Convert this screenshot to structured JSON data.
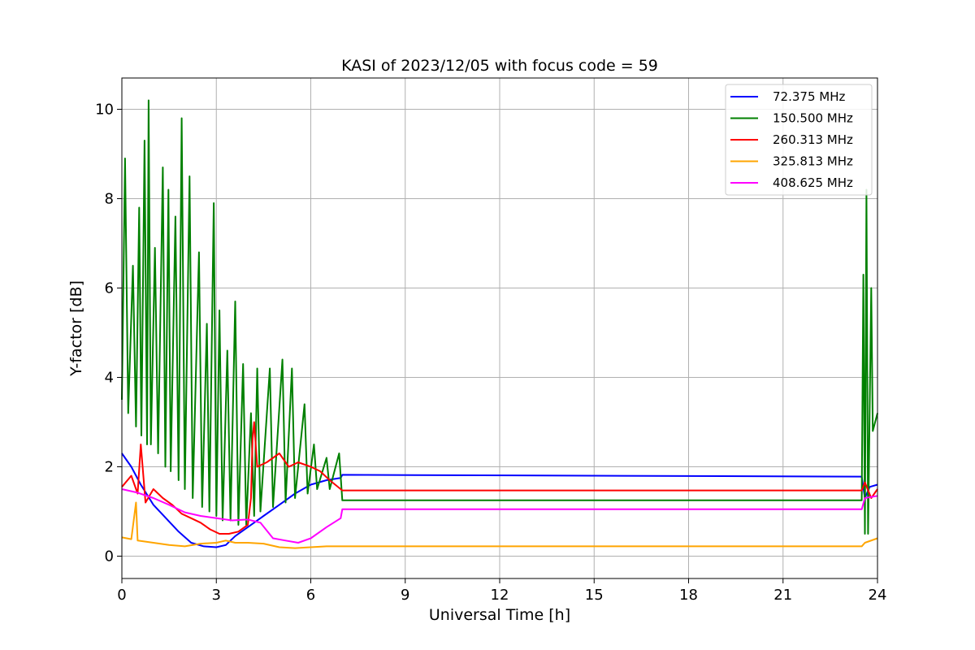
{
  "chart_data": {
    "type": "line",
    "title": "KASI of 2023/12/05 with focus code = 59",
    "xlabel": "Universal Time [h]",
    "ylabel": "Y-factor [dB]",
    "xlim": [
      0,
      24
    ],
    "ylim": [
      -0.5,
      10.7
    ],
    "xticks": [
      0,
      3,
      6,
      9,
      12,
      15,
      18,
      21,
      24
    ],
    "yticks": [
      0,
      2,
      4,
      6,
      8,
      10
    ],
    "grid": true,
    "legend_position": "top-right",
    "series": [
      {
        "name": " 72.375 MHz",
        "color": "#0000ff",
        "points": [
          [
            0,
            2.3
          ],
          [
            0.3,
            2.0
          ],
          [
            0.6,
            1.6
          ],
          [
            1.0,
            1.15
          ],
          [
            1.4,
            0.85
          ],
          [
            1.8,
            0.55
          ],
          [
            2.2,
            0.3
          ],
          [
            2.6,
            0.22
          ],
          [
            3.0,
            0.2
          ],
          [
            3.3,
            0.25
          ],
          [
            3.6,
            0.45
          ],
          [
            4.0,
            0.65
          ],
          [
            4.5,
            0.9
          ],
          [
            5.0,
            1.15
          ],
          [
            5.5,
            1.4
          ],
          [
            6.0,
            1.6
          ],
          [
            6.5,
            1.7
          ],
          [
            6.95,
            1.75
          ],
          [
            7.0,
            1.82
          ],
          [
            23.5,
            1.78
          ],
          [
            23.6,
            1.3
          ],
          [
            23.75,
            1.55
          ],
          [
            24,
            1.6
          ]
        ]
      },
      {
        "name": "150.500 MHz",
        "color": "#008000",
        "points": [
          [
            0,
            3.5
          ],
          [
            0.1,
            8.9
          ],
          [
            0.2,
            3.2
          ],
          [
            0.35,
            6.5
          ],
          [
            0.45,
            2.9
          ],
          [
            0.55,
            7.8
          ],
          [
            0.62,
            2.7
          ],
          [
            0.72,
            9.3
          ],
          [
            0.8,
            2.5
          ],
          [
            0.85,
            10.2
          ],
          [
            0.92,
            2.5
          ],
          [
            1.05,
            6.9
          ],
          [
            1.15,
            2.3
          ],
          [
            1.3,
            8.7
          ],
          [
            1.38,
            2.0
          ],
          [
            1.48,
            8.2
          ],
          [
            1.55,
            1.9
          ],
          [
            1.7,
            7.6
          ],
          [
            1.8,
            1.7
          ],
          [
            1.9,
            9.8
          ],
          [
            2.0,
            1.5
          ],
          [
            2.15,
            8.5
          ],
          [
            2.25,
            1.3
          ],
          [
            2.45,
            6.8
          ],
          [
            2.55,
            1.1
          ],
          [
            2.7,
            5.2
          ],
          [
            2.78,
            1.0
          ],
          [
            2.92,
            7.9
          ],
          [
            3.0,
            0.9
          ],
          [
            3.1,
            5.5
          ],
          [
            3.2,
            0.8
          ],
          [
            3.35,
            4.6
          ],
          [
            3.45,
            0.8
          ],
          [
            3.6,
            5.7
          ],
          [
            3.7,
            0.7
          ],
          [
            3.85,
            4.3
          ],
          [
            3.95,
            0.7
          ],
          [
            4.1,
            3.2
          ],
          [
            4.2,
            0.9
          ],
          [
            4.3,
            4.2
          ],
          [
            4.4,
            1.0
          ],
          [
            4.7,
            4.2
          ],
          [
            4.8,
            1.1
          ],
          [
            5.1,
            4.4
          ],
          [
            5.2,
            1.2
          ],
          [
            5.4,
            4.2
          ],
          [
            5.5,
            1.3
          ],
          [
            5.8,
            3.4
          ],
          [
            5.9,
            1.4
          ],
          [
            6.1,
            2.5
          ],
          [
            6.2,
            1.5
          ],
          [
            6.5,
            2.2
          ],
          [
            6.6,
            1.5
          ],
          [
            6.9,
            2.3
          ],
          [
            7.0,
            1.25
          ],
          [
            23.5,
            1.25
          ],
          [
            23.55,
            6.3
          ],
          [
            23.6,
            0.5
          ],
          [
            23.65,
            8.2
          ],
          [
            23.7,
            0.5
          ],
          [
            23.8,
            6.0
          ],
          [
            23.85,
            2.8
          ],
          [
            24,
            3.2
          ]
        ]
      },
      {
        "name": "260.313 MHz",
        "color": "#ff0000",
        "points": [
          [
            0,
            1.55
          ],
          [
            0.3,
            1.8
          ],
          [
            0.5,
            1.4
          ],
          [
            0.6,
            2.5
          ],
          [
            0.75,
            1.2
          ],
          [
            1.0,
            1.5
          ],
          [
            1.3,
            1.3
          ],
          [
            1.6,
            1.15
          ],
          [
            1.9,
            0.95
          ],
          [
            2.2,
            0.85
          ],
          [
            2.5,
            0.75
          ],
          [
            2.8,
            0.6
          ],
          [
            3.1,
            0.5
          ],
          [
            3.4,
            0.5
          ],
          [
            3.7,
            0.55
          ],
          [
            4.0,
            0.7
          ],
          [
            4.1,
            1.3
          ],
          [
            4.15,
            2.6
          ],
          [
            4.2,
            3.0
          ],
          [
            4.3,
            2.0
          ],
          [
            4.6,
            2.1
          ],
          [
            5.0,
            2.3
          ],
          [
            5.3,
            2.0
          ],
          [
            5.6,
            2.1
          ],
          [
            6.0,
            2.0
          ],
          [
            6.3,
            1.9
          ],
          [
            6.6,
            1.7
          ],
          [
            7.0,
            1.47
          ],
          [
            23.5,
            1.47
          ],
          [
            23.6,
            1.65
          ],
          [
            23.8,
            1.3
          ],
          [
            24,
            1.5
          ]
        ]
      },
      {
        "name": "325.813 MHz",
        "color": "#ffa500",
        "points": [
          [
            0,
            0.42
          ],
          [
            0.3,
            0.38
          ],
          [
            0.45,
            1.2
          ],
          [
            0.5,
            0.35
          ],
          [
            1.0,
            0.3
          ],
          [
            1.5,
            0.25
          ],
          [
            2.0,
            0.22
          ],
          [
            2.5,
            0.28
          ],
          [
            3.0,
            0.3
          ],
          [
            3.3,
            0.35
          ],
          [
            3.6,
            0.3
          ],
          [
            4.0,
            0.3
          ],
          [
            4.5,
            0.28
          ],
          [
            5.0,
            0.2
          ],
          [
            5.5,
            0.18
          ],
          [
            6.0,
            0.2
          ],
          [
            6.5,
            0.22
          ],
          [
            7.0,
            0.22
          ],
          [
            23.5,
            0.22
          ],
          [
            23.6,
            0.3
          ],
          [
            24,
            0.4
          ]
        ]
      },
      {
        "name": "408.625 MHz",
        "color": "#ff00ff",
        "points": [
          [
            0,
            1.5
          ],
          [
            0.5,
            1.42
          ],
          [
            1.0,
            1.3
          ],
          [
            1.5,
            1.15
          ],
          [
            2.0,
            0.98
          ],
          [
            2.5,
            0.9
          ],
          [
            3.0,
            0.85
          ],
          [
            3.5,
            0.8
          ],
          [
            4.0,
            0.82
          ],
          [
            4.4,
            0.75
          ],
          [
            4.8,
            0.4
          ],
          [
            5.2,
            0.35
          ],
          [
            5.6,
            0.3
          ],
          [
            6.0,
            0.4
          ],
          [
            6.5,
            0.65
          ],
          [
            6.95,
            0.85
          ],
          [
            7.0,
            1.05
          ],
          [
            23.5,
            1.05
          ],
          [
            23.6,
            1.3
          ],
          [
            24,
            1.35
          ]
        ]
      }
    ]
  }
}
